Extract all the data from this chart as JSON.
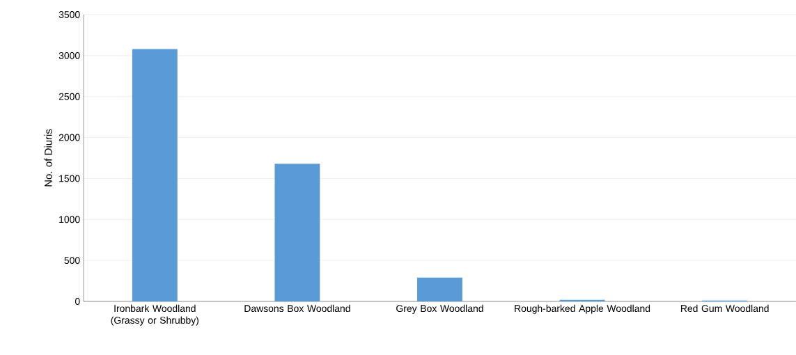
{
  "chart_data": {
    "type": "bar",
    "ylabel": "No. of Diuris",
    "categories": [
      "Ironbark Woodland (Grassy or Shrubby)",
      "Dawsons Box Woodland",
      "Grey Box Woodland",
      "Rough-barked Apple Woodland",
      "Red Gum Woodland"
    ],
    "values": [
      3080,
      1680,
      290,
      20,
      10
    ],
    "color": "#5b9bd5",
    "ylim": [
      0,
      3500
    ],
    "yticks": [
      0,
      500,
      1000,
      1500,
      2000,
      2500,
      3000,
      3500
    ],
    "grid": "y"
  }
}
